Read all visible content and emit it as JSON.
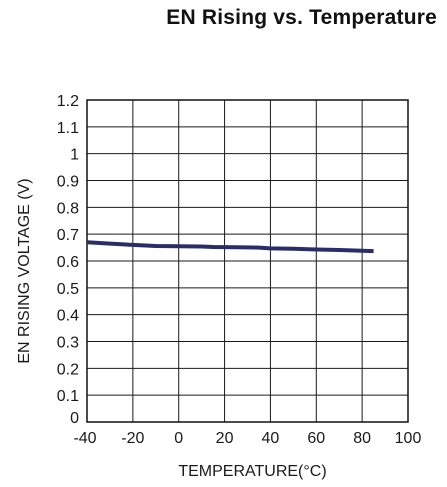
{
  "chart_data": {
    "type": "line",
    "title": "EN Rising vs. Temperature",
    "xlabel": "TEMPERATURE(°C)",
    "ylabel": "EN RISING VOLTAGE (V)",
    "xlim": [
      -40,
      100
    ],
    "ylim": [
      0,
      1.2
    ],
    "x_ticks": [
      -40,
      -20,
      0,
      20,
      40,
      60,
      80,
      100
    ],
    "x_tick_labels": [
      "-40",
      "-20",
      "0",
      "20",
      "40",
      "60",
      "80",
      "100"
    ],
    "y_ticks": [
      0,
      0.1,
      0.2,
      0.3,
      0.4,
      0.5,
      0.6,
      0.7,
      0.8,
      0.9,
      1,
      1.1,
      1.2
    ],
    "y_tick_labels": [
      "0",
      "0.1",
      "0.2",
      "0.3",
      "0.4",
      "0.5",
      "0.6",
      "0.7",
      "0.8",
      "0.9",
      "1",
      "1.1",
      "1.2"
    ],
    "grid": true,
    "legend": "none",
    "series": [
      {
        "color": "#2b2d6b",
        "x": [
          -40,
          -30,
          -20,
          -10,
          0,
          10,
          15,
          25,
          35,
          40,
          50,
          60,
          70,
          80,
          85
        ],
        "y": [
          0.67,
          0.665,
          0.66,
          0.656,
          0.655,
          0.654,
          0.652,
          0.651,
          0.65,
          0.647,
          0.646,
          0.643,
          0.641,
          0.638,
          0.637
        ]
      }
    ]
  }
}
